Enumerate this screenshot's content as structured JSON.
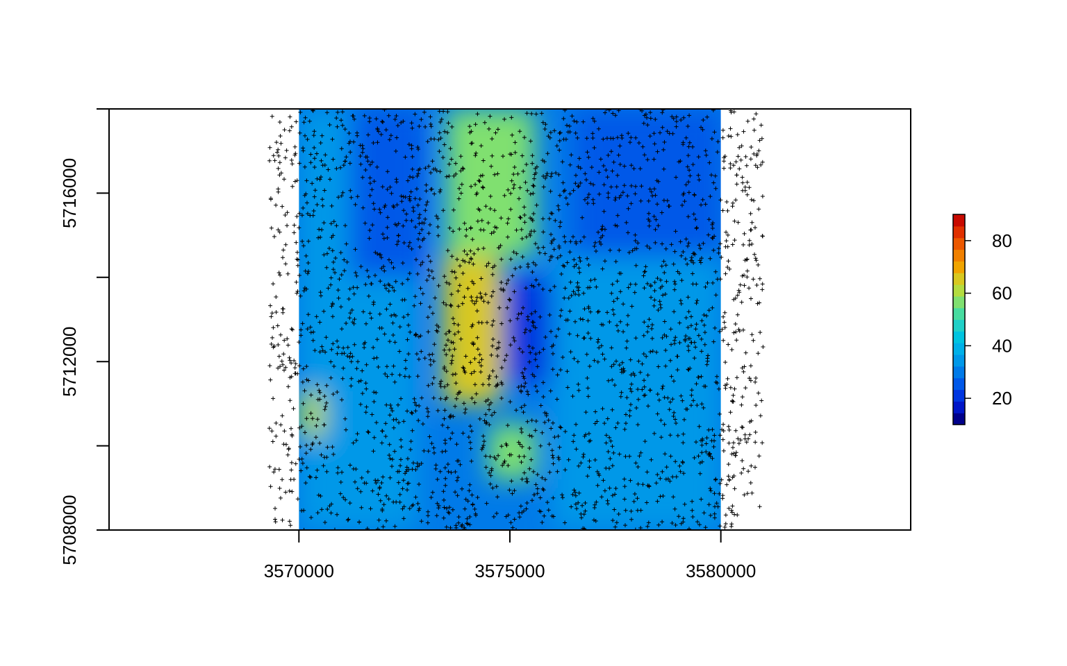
{
  "chart_data": {
    "type": "heatmap",
    "title": "",
    "xlabel": "",
    "ylabel": "",
    "xlim": [
      3565500,
      3584500
    ],
    "ylim": [
      5708000,
      5718000
    ],
    "raster_extent": {
      "x": [
        3570000,
        3580000
      ],
      "y": [
        5708000,
        5718000
      ]
    },
    "x_ticks": [
      {
        "value": 3570000,
        "label": "3570000"
      },
      {
        "value": 3575000,
        "label": "3575000"
      },
      {
        "value": 3580000,
        "label": "3580000"
      }
    ],
    "y_ticks": [
      {
        "value": 5708000,
        "label": "5708000"
      },
      {
        "value": 5710000,
        "label": ""
      },
      {
        "value": 5712000,
        "label": "5712000"
      },
      {
        "value": 5714000,
        "label": ""
      },
      {
        "value": 5716000,
        "label": "5716000"
      },
      {
        "value": 5718000,
        "label": ""
      }
    ],
    "colorbar": {
      "range": [
        10,
        90
      ],
      "position": "right",
      "ticks": [
        {
          "value": 20,
          "label": "20"
        },
        {
          "value": 40,
          "label": "40"
        },
        {
          "value": 60,
          "label": "60"
        },
        {
          "value": 80,
          "label": "80"
        }
      ],
      "colors": [
        "#00008b",
        "#0016c8",
        "#0036e0",
        "#0058e8",
        "#007ae8",
        "#0098e8",
        "#00b0e8",
        "#00c4e0",
        "#20d0c8",
        "#48dca0",
        "#80e070",
        "#b4dc40",
        "#d8c820",
        "#f0a400",
        "#f08000",
        "#ec5800",
        "#e03000",
        "#c80a00"
      ]
    },
    "grid": false,
    "zones": [
      {
        "x": [
          3570000,
          3572800
        ],
        "y": [
          5708000,
          5718000
        ],
        "value": 33
      },
      {
        "x": [
          3571200,
          3573000
        ],
        "y": [
          5714000,
          5718000
        ],
        "value": 26
      },
      {
        "x": [
          3573500,
          3575600
        ],
        "y": [
          5714500,
          5718000
        ],
        "value": 58
      },
      {
        "x": [
          3573400,
          3574800
        ],
        "y": [
          5711000,
          5714500
        ],
        "value": 67
      },
      {
        "x": [
          3574800,
          3576500
        ],
        "y": [
          5711500,
          5714000
        ],
        "value": 20
      },
      {
        "x": [
          3576000,
          3580000
        ],
        "y": [
          5711000,
          5714500
        ],
        "value": 36
      },
      {
        "x": [
          3576500,
          3580000
        ],
        "y": [
          5714500,
          5718000
        ],
        "value": 26
      },
      {
        "x": [
          3570000,
          3570600
        ],
        "y": [
          5710200,
          5711300
        ],
        "value": 60
      },
      {
        "x": [
          3574500,
          3575600
        ],
        "y": [
          5709200,
          5710500
        ],
        "value": 55
      },
      {
        "x": [
          3576000,
          3580000
        ],
        "y": [
          5708000,
          5711000
        ],
        "value": 33
      }
    ],
    "points": {
      "marker": "+",
      "x_range": [
        3569300,
        3581000
      ],
      "y_range": [
        5708000,
        5718000
      ],
      "count": 2600
    }
  }
}
